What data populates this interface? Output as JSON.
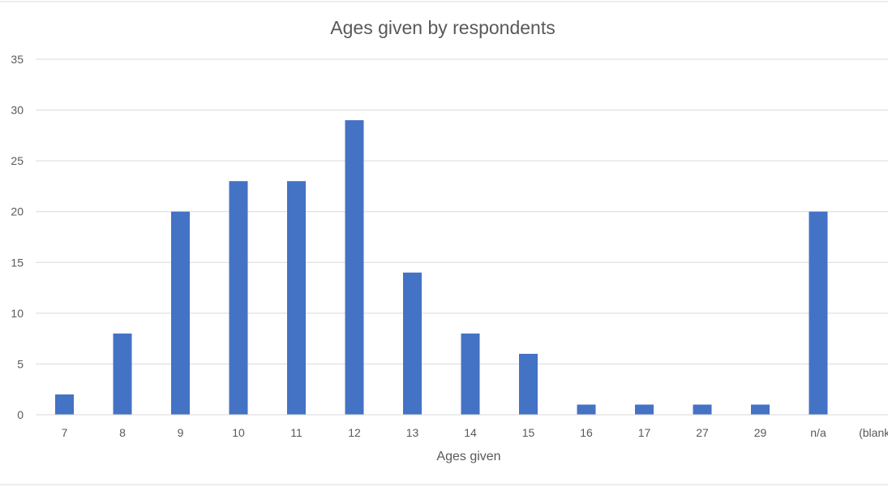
{
  "chart_data": {
    "type": "bar",
    "title": "Ages given by respondents",
    "xlabel": "Ages given",
    "ylabel": "",
    "categories": [
      "7",
      "8",
      "9",
      "10",
      "11",
      "12",
      "13",
      "14",
      "15",
      "16",
      "17",
      "27",
      "29",
      "n/a",
      "(blank)"
    ],
    "values": [
      2,
      8,
      20,
      23,
      23,
      29,
      14,
      8,
      6,
      1,
      1,
      1,
      1,
      20,
      0
    ],
    "ylim": [
      0,
      35
    ],
    "yticks": [
      0,
      5,
      10,
      15,
      20,
      25,
      30,
      35
    ],
    "grid": true,
    "legend": "none",
    "bar_color": "#4472C4"
  }
}
